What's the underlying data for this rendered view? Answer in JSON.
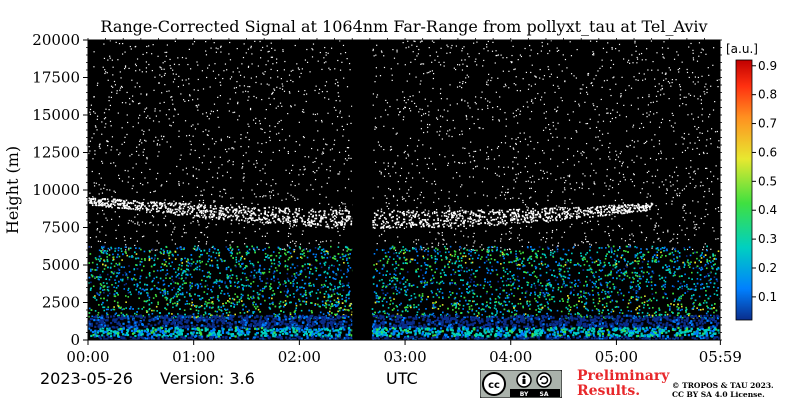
{
  "chart_data": {
    "type": "heatmap",
    "title": "Range-Corrected Signal at 1064nm Far-Range from pollyxt_tau at Tel_Aviv",
    "xlabel": "UTC",
    "ylabel": "Height (m)",
    "x_ticks": [
      "00:00",
      "01:00",
      "02:00",
      "03:00",
      "04:00",
      "05:00",
      "05:59"
    ],
    "x_range_hours": [
      0,
      5.98
    ],
    "y_ticks": [
      0,
      2500,
      5000,
      7500,
      10000,
      12500,
      15000,
      17500,
      20000
    ],
    "ylim": [
      0,
      20000
    ],
    "colorbar": {
      "unit": "[a.u.]",
      "ticks": [
        0.1,
        0.2,
        0.3,
        0.4,
        0.5,
        0.6,
        0.7,
        0.8,
        0.9
      ],
      "range": [
        0.02,
        0.92
      ],
      "colors": [
        "#0a2d8c",
        "#0080ff",
        "#00d0c0",
        "#40e040",
        "#e8e830",
        "#ff9020",
        "#ff3010",
        "#c00000"
      ]
    },
    "no_data_period": {
      "start": "02:30",
      "end": "02:41"
    },
    "layers": [
      {
        "name": "boundary layer",
        "bottom_m": 0,
        "top_m": 1600,
        "intensity": 0.25
      },
      {
        "name": "aerosol layer",
        "bottom_m": 1600,
        "top_m": 6000,
        "intensity": 0.35
      },
      {
        "name": "cirrus cloud",
        "start": "00:00",
        "end": "05:20",
        "bottom_m": 7500,
        "top_m": 10500,
        "intensity": 0.05
      }
    ],
    "grid": false
  },
  "footer": {
    "date": "2023-05-26",
    "version": "Version: 3.6",
    "axis_unit": "UTC",
    "license_badge": [
      "cc",
      "BY",
      "SA"
    ],
    "preliminary_line1": "Preliminary",
    "preliminary_line2": "Results.",
    "copyright_line1": "© TROPOS & TAU 2023.",
    "copyright_line2": "CC BY SA 4.0 License."
  },
  "colors": {
    "preliminary": "#e8282b",
    "background": "#000000"
  }
}
